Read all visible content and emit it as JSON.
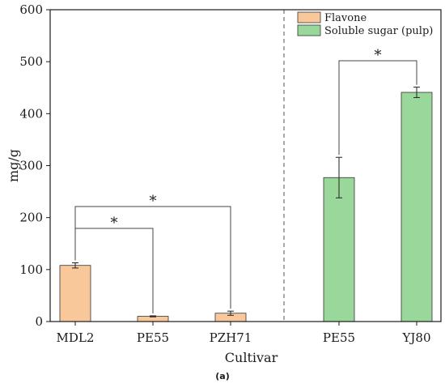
{
  "chart_data": {
    "type": "bar",
    "categories": [
      "MDL2",
      "PE55",
      "PZH71",
      "PE55",
      "YJ80"
    ],
    "series": [
      {
        "name": "Flavone",
        "color": "#f9c89a",
        "values": [
          108,
          10,
          16,
          null,
          null
        ],
        "errors": [
          5,
          1,
          4,
          null,
          null
        ]
      },
      {
        "name": "Soluble sugar (pulp)",
        "color": "#9ad79a",
        "values": [
          null,
          null,
          null,
          277,
          441
        ],
        "errors": [
          null,
          null,
          null,
          39,
          10
        ]
      }
    ],
    "xlabel": "Cultivar",
    "ylabel": "mg/g",
    "ylim": [
      0,
      600
    ],
    "yticks": [
      0,
      100,
      200,
      300,
      400,
      500,
      600
    ],
    "legend_position": "top-right",
    "grid": false,
    "separator_after_category": 3,
    "significance": [
      {
        "from": 0,
        "to": 1,
        "label": "*"
      },
      {
        "from": 0,
        "to": 2,
        "label": "*"
      },
      {
        "from": 3,
        "to": 4,
        "label": "*"
      }
    ],
    "caption": "(a)"
  }
}
